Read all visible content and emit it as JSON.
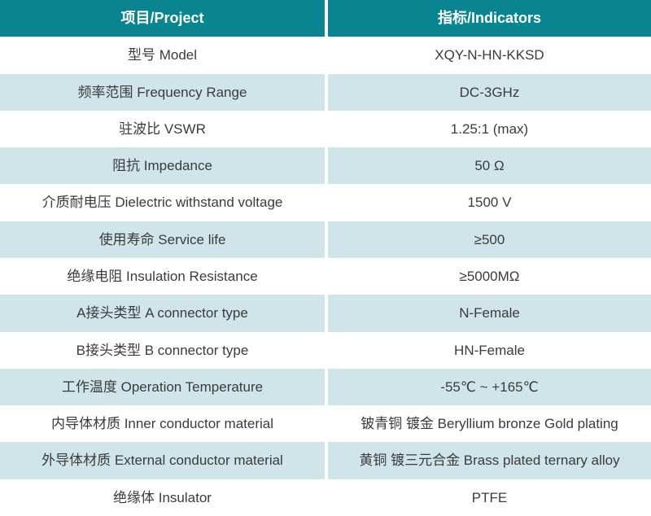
{
  "table": {
    "header": {
      "project": "项目/Project",
      "indicators": "指标/Indicators"
    },
    "rows": [
      {
        "project": "型号 Model",
        "indicator": "XQY-N-HN-KKSD"
      },
      {
        "project": "频率范围 Frequency Range",
        "indicator": "DC-3GHz"
      },
      {
        "project": "驻波比 VSWR",
        "indicator": "1.25:1 (max)"
      },
      {
        "project": "阻抗 Impedance",
        "indicator": "50 Ω"
      },
      {
        "project": "介质耐电压 Dielectric withstand voltage",
        "indicator": "1500 V"
      },
      {
        "project": "使用寿命 Service life",
        "indicator": "≥500"
      },
      {
        "project": "绝缘电阻 Insulation Resistance",
        "indicator": "≥5000MΩ"
      },
      {
        "project": "A接头类型 A connector type",
        "indicator": "N-Female"
      },
      {
        "project": "B接头类型 B connector type",
        "indicator": "HN-Female"
      },
      {
        "project": "工作温度 Operation Temperature",
        "indicator": "-55℃ ~ +165℃"
      },
      {
        "project": "内导体材质 Inner conductor material",
        "indicator": "铍青铜 镀金 Beryllium bronze Gold plating"
      },
      {
        "project": "外导体材质 External conductor material",
        "indicator": "黄铜 镀三元合金 Brass plated ternary alloy"
      },
      {
        "project": "绝缘体 Insulator",
        "indicator": "PTFE"
      }
    ]
  },
  "colors": {
    "header_bg": "#0B8492",
    "header_text": "#FFFFFF",
    "row_bg": "#FFFFFF",
    "row_alt_bg": "#CFE5E9",
    "text": "#3B3B3B",
    "divider": "#FFFFFF"
  }
}
